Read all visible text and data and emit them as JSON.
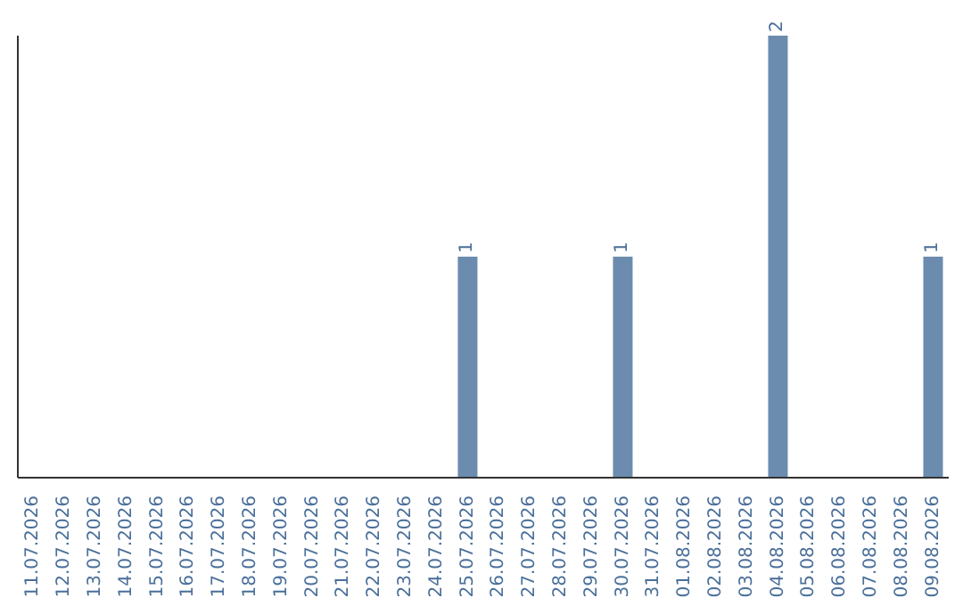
{
  "chart_data": {
    "type": "bar",
    "categories": [
      "11.07.2026",
      "12.07.2026",
      "13.07.2026",
      "14.07.2026",
      "15.07.2026",
      "16.07.2026",
      "17.07.2026",
      "18.07.2026",
      "19.07.2026",
      "20.07.2026",
      "21.07.2026",
      "22.07.2026",
      "23.07.2026",
      "24.07.2026",
      "25.07.2026",
      "26.07.2026",
      "27.07.2026",
      "28.07.2026",
      "29.07.2026",
      "30.07.2026",
      "31.07.2026",
      "01.08.2026",
      "02.08.2026",
      "03.08.2026",
      "04.08.2026",
      "05.08.2026",
      "06.08.2026",
      "07.08.2026",
      "08.08.2026",
      "09.08.2026"
    ],
    "values": [
      null,
      null,
      null,
      null,
      null,
      null,
      null,
      null,
      null,
      null,
      null,
      null,
      null,
      null,
      1,
      null,
      null,
      null,
      null,
      1,
      null,
      null,
      null,
      null,
      2,
      null,
      null,
      null,
      null,
      1
    ],
    "color": "#6b8cae",
    "data_labels": true,
    "grid": false,
    "legend": false
  }
}
